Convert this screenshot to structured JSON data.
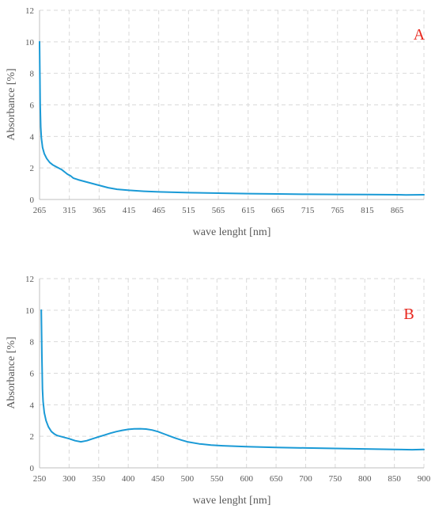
{
  "colors": {
    "series": "#1a9ad6",
    "label": "#e8251c",
    "text": "#595959",
    "grid": "#d9d9d9"
  },
  "chart_data": [
    {
      "type": "line",
      "panel_label": "A",
      "xlabel": "wave lenght [nm]",
      "ylabel": "Absorbance [%]",
      "xlim": [
        265,
        910
      ],
      "ylim": [
        0,
        12
      ],
      "x_ticks": [
        265,
        315,
        365,
        415,
        465,
        515,
        565,
        615,
        665,
        715,
        765,
        815,
        865
      ],
      "y_ticks": [
        0,
        2,
        4,
        6,
        8,
        10,
        12
      ],
      "grid": true,
      "series": [
        {
          "x": [
            265,
            266,
            267,
            268,
            270,
            273,
            277,
            282,
            287,
            292,
            297,
            302,
            307,
            312,
            317,
            322,
            330,
            340,
            350,
            365,
            380,
            395,
            415,
            440,
            465,
            515,
            565,
            615,
            665,
            715,
            765,
            815,
            865,
            880,
            910
          ],
          "values": [
            10.0,
            6.0,
            4.6,
            3.9,
            3.3,
            2.9,
            2.6,
            2.35,
            2.2,
            2.1,
            2.0,
            1.9,
            1.75,
            1.6,
            1.5,
            1.35,
            1.25,
            1.15,
            1.05,
            0.9,
            0.75,
            0.65,
            0.58,
            0.52,
            0.48,
            0.43,
            0.4,
            0.37,
            0.35,
            0.33,
            0.32,
            0.31,
            0.3,
            0.29,
            0.3
          ]
        }
      ]
    },
    {
      "type": "line",
      "panel_label": "B",
      "xlabel": "wave lenght [nm]",
      "ylabel": "Absorbance [%]",
      "xlim": [
        250,
        900
      ],
      "ylim": [
        0,
        12
      ],
      "x_ticks": [
        250,
        300,
        350,
        400,
        450,
        500,
        550,
        600,
        650,
        700,
        750,
        800,
        850,
        900
      ],
      "y_ticks": [
        0,
        2,
        4,
        6,
        8,
        10,
        12
      ],
      "grid": true,
      "series": [
        {
          "x": [
            253,
            254,
            255,
            256,
            258,
            261,
            265,
            270,
            275,
            280,
            290,
            300,
            310,
            320,
            330,
            340,
            350,
            360,
            370,
            380,
            390,
            400,
            410,
            420,
            430,
            440,
            450,
            460,
            470,
            480,
            490,
            500,
            520,
            540,
            560,
            600,
            650,
            700,
            750,
            800,
            850,
            880,
            900
          ],
          "values": [
            10.0,
            7.0,
            5.0,
            4.2,
            3.5,
            3.0,
            2.6,
            2.3,
            2.15,
            2.05,
            1.95,
            1.85,
            1.72,
            1.65,
            1.72,
            1.85,
            1.97,
            2.08,
            2.2,
            2.3,
            2.38,
            2.44,
            2.47,
            2.48,
            2.46,
            2.4,
            2.3,
            2.16,
            2.02,
            1.88,
            1.76,
            1.65,
            1.52,
            1.44,
            1.4,
            1.34,
            1.29,
            1.26,
            1.23,
            1.2,
            1.17,
            1.15,
            1.17
          ]
        }
      ]
    }
  ]
}
